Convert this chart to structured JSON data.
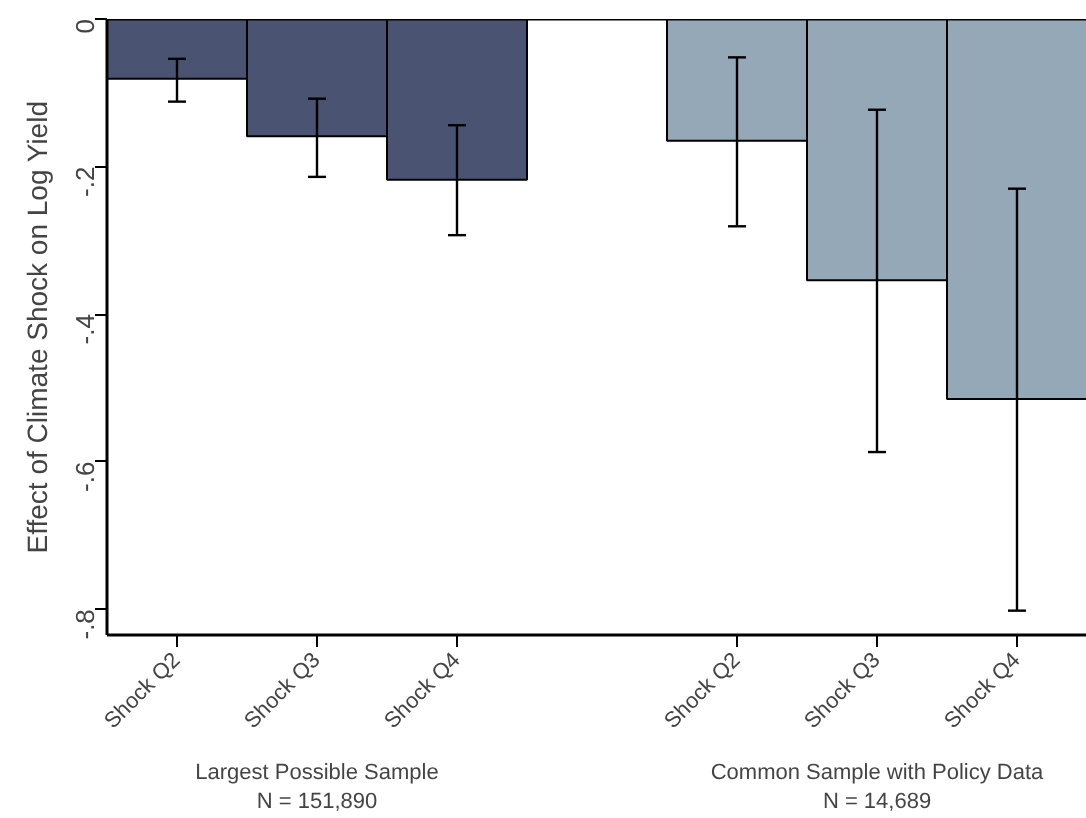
{
  "chart_data": {
    "type": "bar",
    "ylabel": "Effect of Climate Shock on Log Yield",
    "categories": [
      "Shock Q2",
      "Shock Q3",
      "Shock Q4",
      null,
      "Shock Q2",
      "Shock Q3",
      "Shock Q4"
    ],
    "values": [
      -0.081,
      -0.159,
      -0.218,
      null,
      -0.165,
      -0.354,
      -0.515
    ],
    "colors": [
      "#4a5472",
      "#4a5472",
      "#4a5472",
      null,
      "#95a8b8",
      "#95a8b8",
      "#95a8b8"
    ],
    "errors": [
      [
        -0.112,
        -0.054
      ],
      [
        -0.214,
        -0.108
      ],
      [
        -0.293,
        -0.144
      ],
      null,
      [
        -0.281,
        -0.052
      ],
      [
        -0.587,
        -0.123
      ],
      [
        -0.802,
        -0.23
      ]
    ],
    "ylim": [
      -0.835,
      0
    ],
    "yticks": [
      {
        "value": 0,
        "label": "0"
      },
      {
        "value": -0.2,
        "label": "-.2"
      },
      {
        "value": -0.4,
        "label": "-.4"
      },
      {
        "value": -0.6,
        "label": "-.6"
      },
      {
        "value": -0.8,
        "label": "-.8"
      }
    ],
    "ref_lines": [
      {
        "axis": "y",
        "value": 0,
        "label": null
      }
    ],
    "grid": false,
    "annotations": [
      "Largest Possible Sample\nN = 151,890",
      "Common Sample with Policy Data\nN = 14,689"
    ]
  }
}
